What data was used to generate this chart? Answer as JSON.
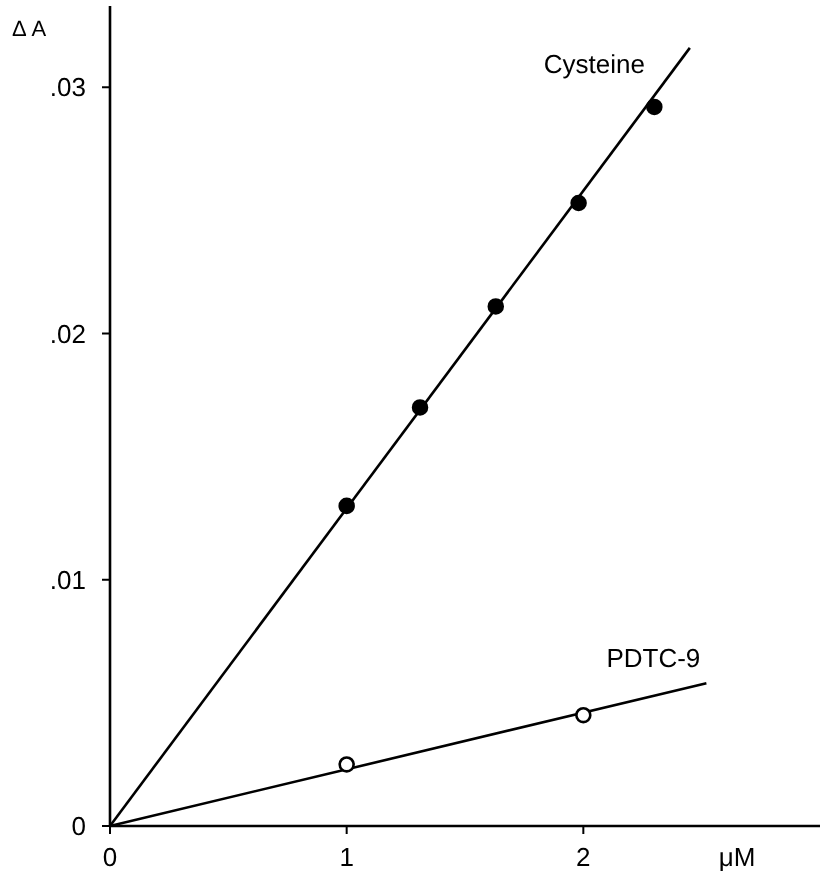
{
  "chart_data": {
    "type": "scatter",
    "xlabel": "μM",
    "ylabel": "Δ A",
    "xlim": [
      0,
      3.0
    ],
    "ylim": [
      0,
      0.0333
    ],
    "xticks": [
      0,
      1,
      2
    ],
    "yticks": [
      0,
      {
        "value": 0.01,
        "label": ".01"
      },
      {
        "value": 0.02,
        "label": ".02"
      },
      {
        "value": 0.03,
        "label": ".03"
      }
    ],
    "grid": false,
    "legend": false,
    "marker": "circle",
    "series": [
      {
        "name": "Cysteine",
        "color": "#000000",
        "x": [
          1.0,
          1.31,
          1.63,
          1.98,
          2.3
        ],
        "values": [
          0.013,
          0.017,
          0.0211,
          0.0253,
          0.0292
        ]
      },
      {
        "name": "PDTC-9",
        "color": "#ffffff",
        "x": [
          1.0,
          2.0
        ],
        "values": [
          0.0025,
          0.0045
        ]
      },
      {
        "type": "line",
        "marker": "none",
        "color": "#000000",
        "x": [
          0,
          2.45
        ],
        "values": [
          0,
          0.0316
        ]
      },
      {
        "type": "line",
        "marker": "none",
        "color": "#000000",
        "x": [
          0,
          2.52
        ],
        "values": [
          0,
          0.0058
        ]
      }
    ]
  }
}
